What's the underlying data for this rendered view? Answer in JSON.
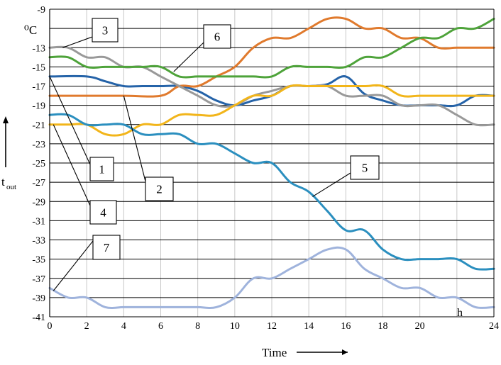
{
  "chart_data": {
    "type": "line",
    "title": "",
    "xlabel": "Time",
    "ylabel": "t",
    "ylabel_sub": "out",
    "unit_top": "⁰C",
    "x_unit": "h",
    "xlim": [
      0,
      24
    ],
    "ylim": [
      -41,
      -9
    ],
    "x_ticks": [
      "0",
      "2",
      "4",
      "6",
      "8",
      "10",
      "12",
      "14",
      "16",
      "18",
      "20",
      "22",
      "24"
    ],
    "x_ticks_shown": [
      "0",
      "2",
      "4",
      "6",
      "8",
      "10",
      "12",
      "14",
      "16",
      "18",
      "20",
      "",
      "24"
    ],
    "y_ticks": [
      "-9",
      "-11",
      "-13",
      "-15",
      "-17",
      "-19",
      "-21",
      "-23",
      "-25",
      "-27",
      "-29",
      "-31",
      "-33",
      "-35",
      "-37",
      "-39",
      "-41"
    ],
    "y_ticks_shown": [
      "-9",
      "",
      "-13",
      "-15",
      "-17",
      "-19",
      "-21",
      "-23",
      "-25",
      "-27",
      "-29",
      "-31",
      "-33",
      "-35",
      "-37",
      "-39",
      "-41"
    ],
    "grid": true,
    "series": [
      {
        "name": "1",
        "color": "#2563a8",
        "x": [
          0,
          2,
          3,
          4,
          5,
          6,
          7,
          8,
          9,
          10,
          11,
          12,
          13,
          14,
          15,
          16,
          17,
          18,
          19,
          20,
          21,
          22,
          23,
          24
        ],
        "y": [
          -16,
          -16,
          -16.5,
          -17,
          -17,
          -17,
          -17,
          -17.5,
          -18.5,
          -19,
          -18.5,
          -18,
          -17,
          -17,
          -16.8,
          -16,
          -17.8,
          -18.5,
          -19,
          -19,
          -19,
          -19,
          -18,
          -18
        ]
      },
      {
        "name": "2",
        "color": "#e07a2d",
        "x": [
          0,
          2,
          4,
          6,
          7,
          8,
          9,
          10,
          11,
          12,
          13,
          14,
          15,
          16,
          17,
          18,
          19,
          20,
          21,
          22,
          23,
          24
        ],
        "y": [
          -18,
          -18,
          -18,
          -18,
          -17,
          -17,
          -16,
          -15,
          -13,
          -12,
          -12,
          -11,
          -10,
          -10,
          -11,
          -11,
          -12,
          -12,
          -13,
          -13,
          -13,
          -13
        ]
      },
      {
        "name": "3",
        "color": "#999999",
        "x": [
          0,
          1,
          2,
          3,
          4,
          5,
          6,
          7,
          8,
          9,
          10,
          11,
          12,
          13,
          14,
          15,
          16,
          17,
          18,
          19,
          20,
          21,
          22,
          23,
          24
        ],
        "y": [
          -13,
          -13,
          -14,
          -14,
          -15,
          -15,
          -16,
          -17,
          -18,
          -19,
          -19,
          -18,
          -17.5,
          -17,
          -17,
          -17,
          -18,
          -18,
          -18,
          -19,
          -19,
          -19,
          -20,
          -21,
          -21
        ]
      },
      {
        "name": "4",
        "color": "#f2b51a",
        "x": [
          0,
          1,
          2,
          3,
          4,
          5,
          6,
          7,
          8,
          9,
          10,
          11,
          12,
          13,
          14,
          15,
          16,
          17,
          18,
          19,
          20,
          21,
          22,
          23,
          24
        ],
        "y": [
          -21,
          -21,
          -21,
          -22,
          -22,
          -21,
          -21,
          -20,
          -20,
          -20,
          -19,
          -18,
          -18,
          -17,
          -17,
          -17,
          -17,
          -17,
          -17,
          -18,
          -18,
          -18,
          -18,
          -18,
          -18
        ]
      },
      {
        "name": "5",
        "color": "#2b8fbf",
        "x": [
          0,
          1,
          2,
          3,
          4,
          5,
          6,
          7,
          8,
          9,
          10,
          11,
          12,
          13,
          14,
          15,
          16,
          17,
          18,
          19,
          20,
          21,
          22,
          23,
          24
        ],
        "y": [
          -20,
          -20,
          -21,
          -21,
          -21,
          -22,
          -22,
          -22,
          -23,
          -23,
          -24,
          -25,
          -25,
          -27,
          -28,
          -30,
          -32,
          -32,
          -34,
          -35,
          -35,
          -35,
          -35,
          -36,
          -36
        ]
      },
      {
        "name": "6",
        "color": "#4ea33a",
        "x": [
          0,
          1,
          2,
          3,
          4,
          5,
          6,
          7,
          8,
          9,
          10,
          11,
          12,
          13,
          14,
          15,
          16,
          17,
          18,
          19,
          20,
          21,
          22,
          23,
          24
        ],
        "y": [
          -14,
          -14,
          -15,
          -15,
          -15,
          -15,
          -15,
          -16,
          -16,
          -16,
          -16,
          -16,
          -16,
          -15,
          -15,
          -15,
          -15,
          -14,
          -14,
          -13,
          -12,
          -12,
          -11,
          -11,
          -10
        ]
      },
      {
        "name": "7",
        "color": "#9fb3dc",
        "x": [
          0,
          1,
          2,
          3,
          4,
          5,
          6,
          7,
          8,
          9,
          10,
          11,
          12,
          13,
          14,
          15,
          16,
          17,
          18,
          19,
          20,
          21,
          22,
          23,
          24
        ],
        "y": [
          -38,
          -39,
          -39,
          -40,
          -40,
          -40,
          -40,
          -40,
          -40,
          -40,
          -39,
          -37,
          -37,
          -36,
          -35,
          -34,
          -34,
          -36,
          -37,
          -38,
          -38,
          -39,
          -39,
          -40,
          -40
        ]
      }
    ],
    "callouts": [
      {
        "label": "1",
        "target": [
          0,
          -16
        ]
      },
      {
        "label": "2",
        "target": [
          4,
          -18
        ]
      },
      {
        "label": "3",
        "target": [
          0.7,
          -13
        ]
      },
      {
        "label": "4",
        "target": [
          0.2,
          -21
        ]
      },
      {
        "label": "5",
        "target": [
          14.2,
          -28.5
        ]
      },
      {
        "label": "6",
        "target": [
          6.7,
          -15.5
        ]
      },
      {
        "label": "7",
        "target": [
          0.2,
          -38.3
        ]
      }
    ]
  }
}
